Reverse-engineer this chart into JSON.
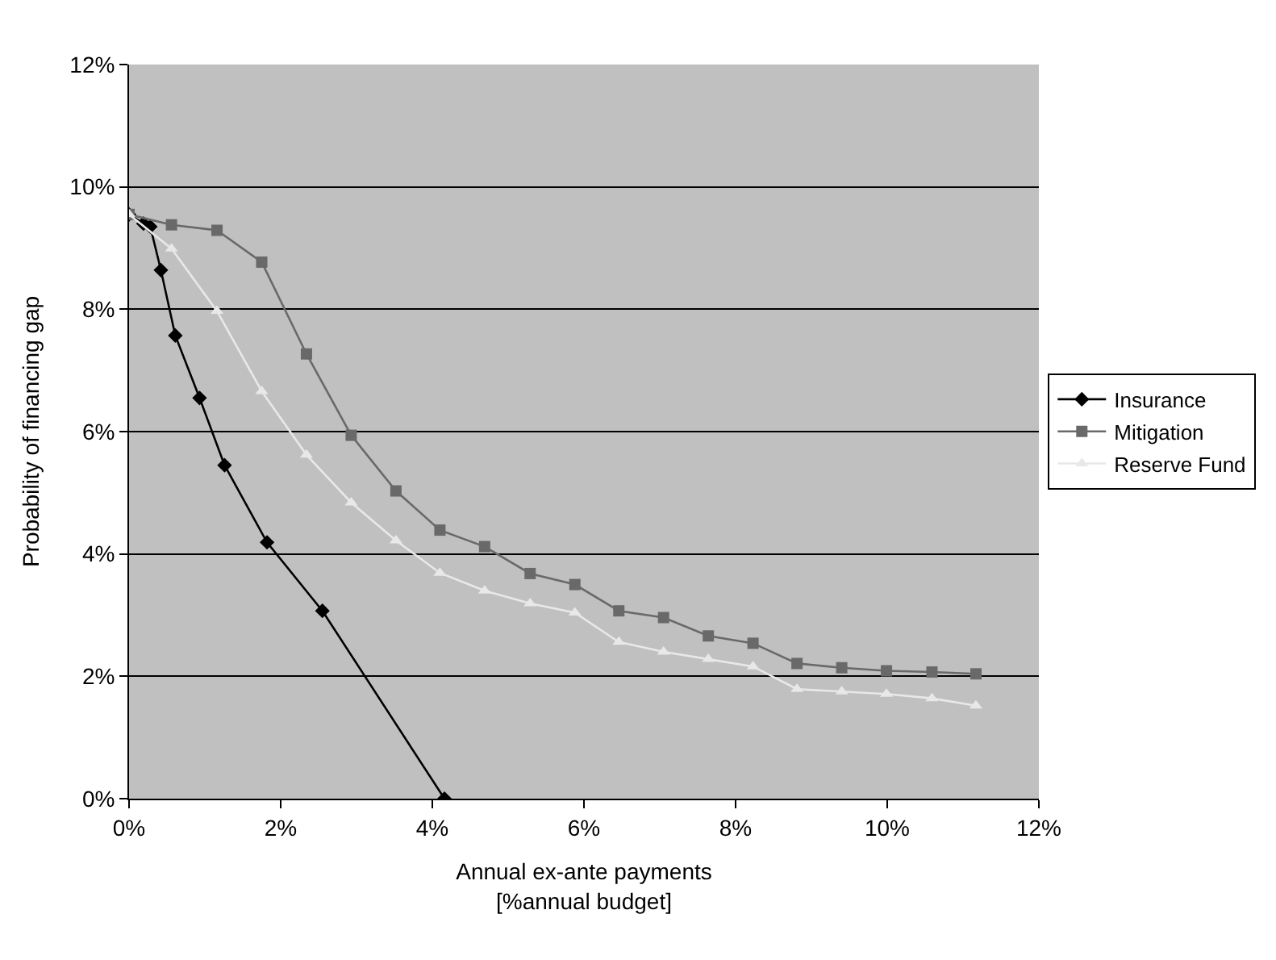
{
  "chart_data": {
    "type": "line",
    "xlabel": "Annual ex-ante payments\n[%annual budget]",
    "ylabel": "Probability of financing gap",
    "xlim": [
      0,
      12
    ],
    "xticks": [
      {
        "value": 0,
        "label": "0%"
      },
      {
        "value": 2,
        "label": "2%"
      },
      {
        "value": 4,
        "label": "4%"
      },
      {
        "value": 6,
        "label": "6%"
      },
      {
        "value": 8,
        "label": "8%"
      },
      {
        "value": 10,
        "label": "10%"
      },
      {
        "value": 12,
        "label": "12%"
      }
    ],
    "ylim": [
      0,
      12
    ],
    "yticks": [
      {
        "value": 0,
        "label": "0%"
      },
      {
        "value": 2,
        "label": "2%"
      },
      {
        "value": 4,
        "label": "4%"
      },
      {
        "value": 6,
        "label": "6%"
      },
      {
        "value": 8,
        "label": "8%"
      },
      {
        "value": 10,
        "label": "10%"
      },
      {
        "value": 12,
        "label": "12%"
      }
    ],
    "grid": "y",
    "legend": "right",
    "line_style": "solid",
    "series": [
      {
        "name": "Insurance",
        "color": "#000000",
        "marker": "diamond",
        "x": [
          0,
          0.19,
          0.28,
          0.42,
          0.61,
          0.93,
          1.26,
          1.82,
          2.55,
          4.16
        ],
        "values": [
          9.55,
          9.4,
          9.35,
          8.64,
          7.57,
          6.55,
          5.45,
          4.19,
          3.07,
          0
        ]
      },
      {
        "name": "Mitigation",
        "color": "#696969",
        "marker": "square",
        "x": [
          0,
          0.56,
          1.16,
          1.75,
          2.34,
          2.93,
          3.52,
          4.1,
          4.69,
          5.29,
          5.88,
          6.46,
          7.05,
          7.64,
          8.23,
          8.81,
          9.4,
          9.99,
          10.59,
          11.17
        ],
        "values": [
          9.55,
          9.38,
          9.29,
          8.77,
          7.27,
          5.94,
          5.03,
          4.39,
          4.12,
          3.68,
          3.5,
          3.07,
          2.96,
          2.66,
          2.54,
          2.21,
          2.14,
          2.09,
          2.07,
          2.04
        ]
      },
      {
        "name": "Reserve Fund",
        "color": "#e8e8e8",
        "marker": "triangle",
        "x": [
          0,
          0.56,
          1.16,
          1.75,
          2.34,
          2.93,
          3.52,
          4.1,
          4.69,
          5.29,
          5.88,
          6.46,
          7.05,
          7.64,
          8.23,
          8.81,
          9.4,
          9.99,
          10.59,
          11.17
        ],
        "values": [
          9.55,
          8.99,
          7.97,
          6.66,
          5.62,
          4.84,
          4.22,
          3.69,
          3.4,
          3.19,
          3.04,
          2.56,
          2.4,
          2.28,
          2.16,
          1.79,
          1.75,
          1.71,
          1.64,
          1.52
        ]
      }
    ]
  }
}
